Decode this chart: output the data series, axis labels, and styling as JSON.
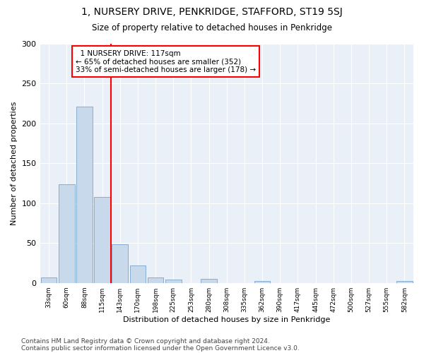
{
  "title": "1, NURSERY DRIVE, PENKRIDGE, STAFFORD, ST19 5SJ",
  "subtitle": "Size of property relative to detached houses in Penkridge",
  "xlabel": "Distribution of detached houses by size in Penkridge",
  "ylabel": "Number of detached properties",
  "categories": [
    "33sqm",
    "60sqm",
    "88sqm",
    "115sqm",
    "143sqm",
    "170sqm",
    "198sqm",
    "225sqm",
    "253sqm",
    "280sqm",
    "308sqm",
    "335sqm",
    "362sqm",
    "390sqm",
    "417sqm",
    "445sqm",
    "472sqm",
    "500sqm",
    "527sqm",
    "555sqm",
    "582sqm"
  ],
  "values": [
    7,
    124,
    221,
    108,
    48,
    22,
    7,
    4,
    0,
    5,
    0,
    0,
    2,
    0,
    0,
    0,
    0,
    0,
    0,
    0,
    2
  ],
  "bar_color": "#c9d9ec",
  "bar_edge_color": "#7aa4cc",
  "property_line_label": "1 NURSERY DRIVE: 117sqm",
  "annotation_line1": "← 65% of detached houses are smaller (352)",
  "annotation_line2": "33% of semi-detached houses are larger (178) →",
  "annotation_box_color": "white",
  "annotation_box_edge_color": "red",
  "vline_color": "red",
  "ylim": [
    0,
    300
  ],
  "yticks": [
    0,
    50,
    100,
    150,
    200,
    250,
    300
  ],
  "background_color": "#eaf0f8",
  "grid_color": "white",
  "footer_line1": "Contains HM Land Registry data © Crown copyright and database right 2024.",
  "footer_line2": "Contains public sector information licensed under the Open Government Licence v3.0."
}
